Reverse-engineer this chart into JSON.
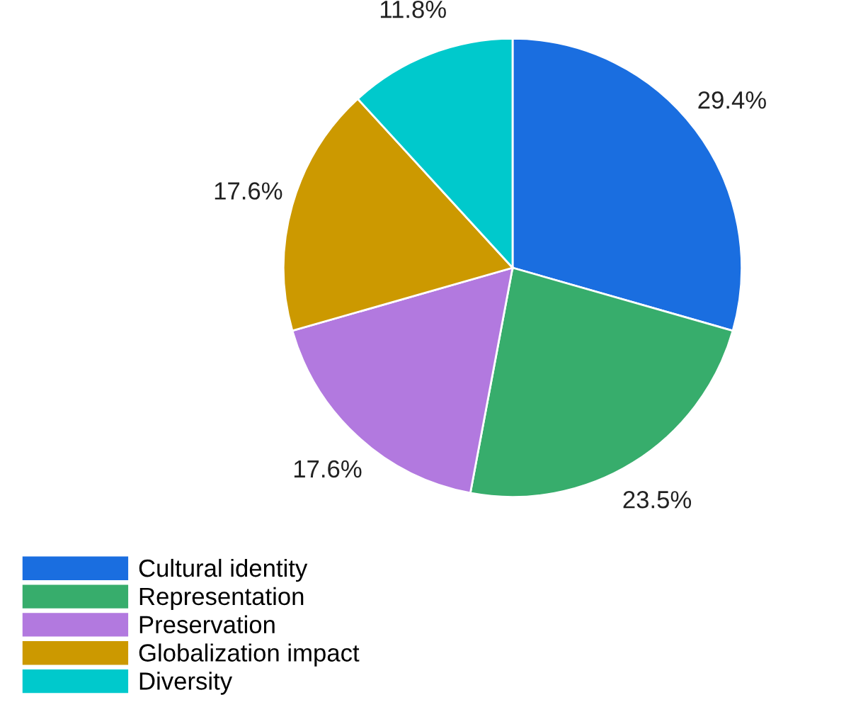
{
  "chart_data": {
    "type": "pie",
    "categories": [
      "Cultural identity",
      "Representation",
      "Preservation",
      "Globalization impact",
      "Diversity"
    ],
    "values": [
      29.4,
      23.5,
      17.6,
      17.6,
      11.8
    ],
    "colors": [
      "#1a6ee0",
      "#37ad6c",
      "#b279df",
      "#cc9900",
      "#00c9cc"
    ],
    "value_labels": [
      "29.4%",
      "23.5%",
      "17.6%",
      "17.6%",
      "11.8%"
    ],
    "legend": "bottom left"
  }
}
